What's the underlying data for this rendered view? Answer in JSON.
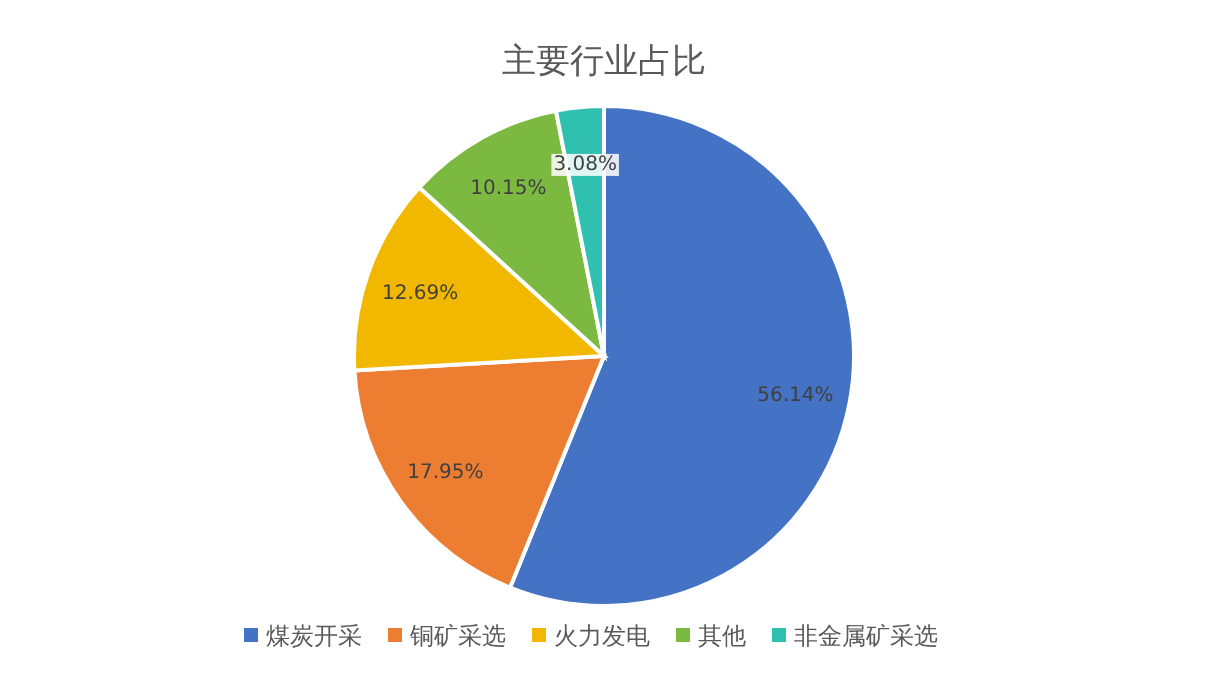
{
  "chart_data": {
    "type": "pie",
    "title": "主要行业占比",
    "categories": [
      "煤炭开采",
      "铜矿采选",
      "火力发电",
      "其他",
      "非金属矿采选"
    ],
    "values": [
      56.14,
      17.95,
      12.69,
      10.15,
      3.08
    ],
    "colors": [
      "#4472c4",
      "#ed7d31",
      "#f2b800",
      "#7cb940",
      "#2fc0b0"
    ],
    "value_labels": [
      "56.14%",
      "17.95%",
      "12.69%",
      "10.15%",
      "3.08%"
    ],
    "legend": "bottom"
  }
}
